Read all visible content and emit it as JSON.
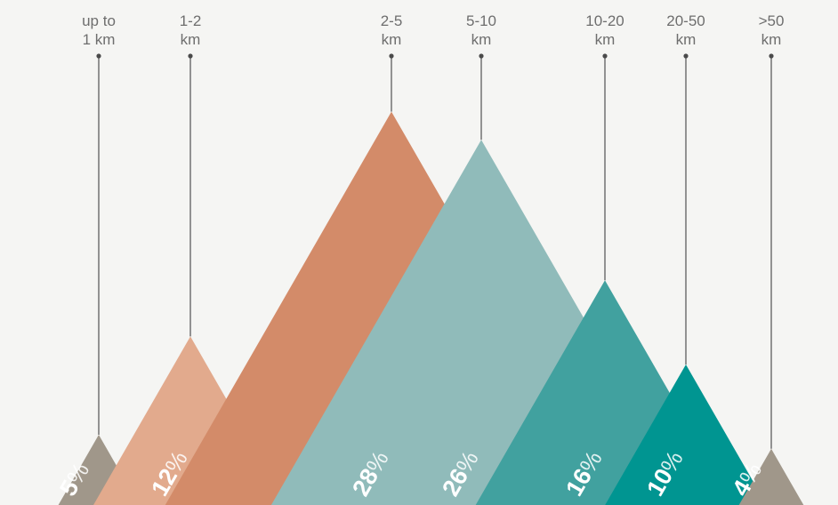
{
  "chart_data": {
    "type": "area",
    "categories": [
      [
        "up to",
        "1 km"
      ],
      [
        "1-2",
        "km"
      ],
      [
        "2-5",
        "km"
      ],
      [
        "5-10",
        "km"
      ],
      [
        "10-20",
        "km"
      ],
      [
        "20-50",
        "km"
      ],
      [
        ">50",
        "km"
      ]
    ],
    "values": [
      5,
      12,
      28,
      26,
      16,
      10,
      4
    ],
    "value_suffix": "%",
    "colors": [
      "#a0978a",
      "#e2aa8d",
      "#d38b69",
      "#90bbba",
      "#41a19f",
      "#009591",
      "#a0978a"
    ],
    "label_color": "#6e6e6e",
    "leader_color": "#7a7a7a"
  }
}
